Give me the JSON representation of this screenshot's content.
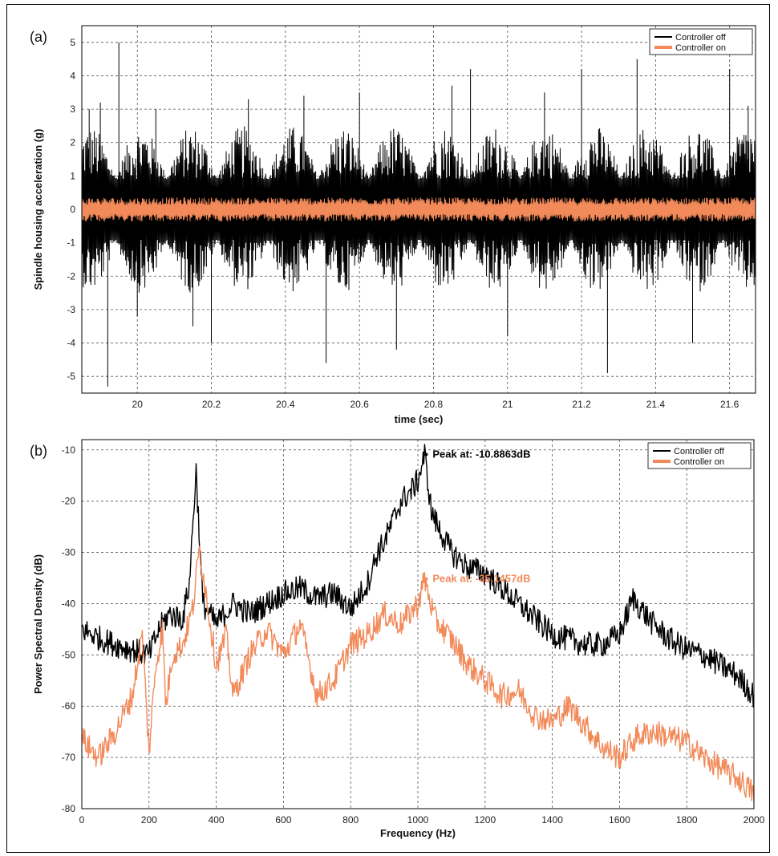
{
  "colors": {
    "off": "#000000",
    "on": "#f28a5a",
    "grid": "#555555"
  },
  "chart_data": [
    {
      "type": "line",
      "panel_label": "(a)",
      "xlabel": "time (sec)",
      "ylabel": "Spindle housing acceleration (g)",
      "xlim": [
        19.85,
        21.67
      ],
      "ylim": [
        -5.5,
        5.5
      ],
      "xticks": [
        20,
        20.2,
        20.4,
        20.6,
        20.8,
        21,
        21.2,
        21.4,
        21.6
      ],
      "xtick_labels": [
        "20",
        "20.2",
        "20.4",
        "20.6",
        "20.8",
        "21",
        "21.2",
        "21.4",
        "21.6"
      ],
      "yticks": [
        -5,
        -4,
        -3,
        -2,
        -1,
        0,
        1,
        2,
        3,
        4,
        5
      ],
      "grid": true,
      "legend_position": "top-right",
      "series": [
        {
          "name": "Controller off",
          "color": "#000000",
          "signal_range": [
            -5.3,
            5.0
          ],
          "x": [
            19.87,
            19.9,
            19.92,
            19.95,
            20.0,
            20.05,
            20.15,
            20.2,
            20.3,
            20.45,
            20.51,
            20.6,
            20.7,
            20.85,
            20.9,
            21.0,
            21.1,
            21.2,
            21.27,
            21.35,
            21.5,
            21.6,
            21.65
          ],
          "values": [
            3.0,
            3.2,
            -5.3,
            5.0,
            -3.2,
            3.0,
            -3.5,
            -4.0,
            3.3,
            3.4,
            -4.6,
            3.5,
            -4.2,
            3.7,
            4.2,
            -3.8,
            3.5,
            4.2,
            -4.9,
            4.5,
            -4.0,
            4.2,
            3.1
          ]
        },
        {
          "name": "Controller on",
          "color": "#f28a5a",
          "signal_range": [
            -0.35,
            0.35
          ],
          "x": [
            19.87,
            20.0,
            20.2,
            20.4,
            20.6,
            20.8,
            21.0,
            21.2,
            21.4,
            21.6,
            21.65
          ],
          "values": [
            0.3,
            -0.3,
            0.35,
            -0.3,
            0.3,
            -0.35,
            0.3,
            -0.3,
            0.3,
            -0.3,
            0.25
          ]
        }
      ]
    },
    {
      "type": "line",
      "panel_label": "(b)",
      "xlabel": "Frequency (Hz)",
      "ylabel": "Power Spectral Density (dB)",
      "xlim": [
        0,
        2000
      ],
      "ylim": [
        -80,
        -8
      ],
      "xticks": [
        0,
        200,
        400,
        600,
        800,
        1000,
        1200,
        1400,
        1600,
        1800,
        2000
      ],
      "yticks": [
        -80,
        -70,
        -60,
        -50,
        -40,
        -30,
        -20,
        -10
      ],
      "grid": true,
      "legend_position": "top-right",
      "series": [
        {
          "name": "Controller off",
          "color": "#000000",
          "x": [
            0,
            30,
            60,
            100,
            150,
            200,
            230,
            260,
            300,
            320,
            340,
            360,
            400,
            450,
            500,
            550,
            600,
            650,
            700,
            750,
            800,
            850,
            880,
            900,
            950,
            980,
            1000,
            1020,
            1040,
            1060,
            1100,
            1150,
            1200,
            1250,
            1300,
            1400,
            1450,
            1500,
            1550,
            1600,
            1640,
            1700,
            1750,
            1800,
            1850,
            1900,
            1950,
            2000
          ],
          "values": [
            -45,
            -46,
            -47,
            -48,
            -49,
            -50,
            -45,
            -42,
            -43,
            -36,
            -14,
            -40,
            -44,
            -40,
            -42,
            -40,
            -38,
            -37,
            -39,
            -38,
            -41,
            -36,
            -30,
            -28,
            -20,
            -18,
            -16,
            -10.89,
            -22,
            -25,
            -30,
            -33,
            -34,
            -37,
            -40,
            -46,
            -47,
            -48,
            -48,
            -46,
            -39,
            -44,
            -47,
            -49,
            -50,
            -52,
            -54,
            -58
          ]
        },
        {
          "name": "Controller on",
          "color": "#f28a5a",
          "x": [
            0,
            20,
            50,
            100,
            150,
            180,
            200,
            220,
            240,
            250,
            270,
            300,
            330,
            350,
            400,
            430,
            450,
            500,
            550,
            600,
            650,
            700,
            750,
            800,
            850,
            900,
            950,
            1000,
            1020,
            1050,
            1100,
            1150,
            1200,
            1250,
            1300,
            1350,
            1400,
            1450,
            1500,
            1550,
            1600,
            1650,
            1700,
            1750,
            1800,
            1850,
            1900,
            1950,
            2000
          ],
          "values": [
            -66,
            -68,
            -70,
            -65,
            -58,
            -46,
            -69,
            -52,
            -45,
            -60,
            -50,
            -48,
            -41,
            -29,
            -52,
            -46,
            -58,
            -50,
            -45,
            -50,
            -44,
            -58,
            -55,
            -48,
            -46,
            -42,
            -44,
            -40,
            -35.15,
            -43,
            -47,
            -52,
            -55,
            -58,
            -57,
            -62,
            -63,
            -60,
            -64,
            -68,
            -70,
            -66,
            -65,
            -66,
            -67,
            -70,
            -72,
            -74,
            -77
          ]
        }
      ],
      "annotations": [
        {
          "text": "Peak at: -10.8863dB",
          "x": 1020,
          "y": -10.89,
          "color": "#000000"
        },
        {
          "text": "Peak at: -35.1457dB",
          "x": 1020,
          "y": -35.15,
          "color": "#f28a5a"
        }
      ]
    }
  ]
}
